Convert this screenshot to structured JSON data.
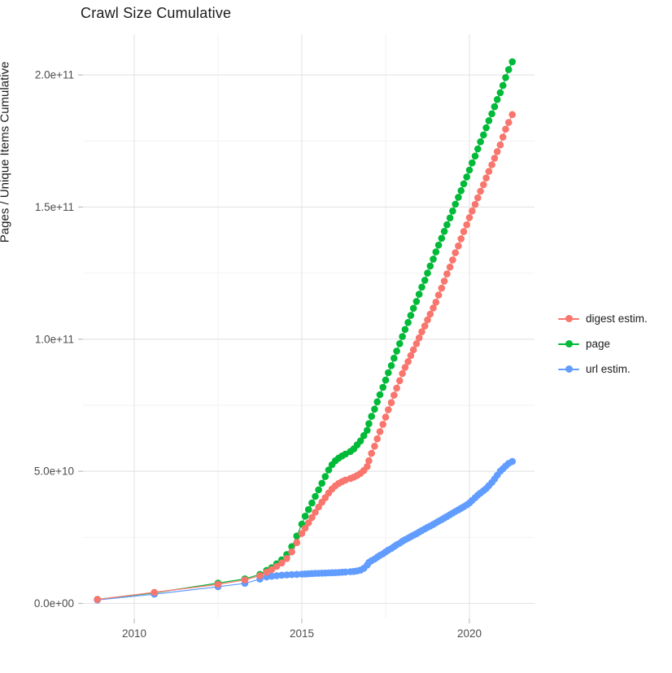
{
  "chart_data": {
    "type": "scatter",
    "title": "Crawl Size Cumulative",
    "xlabel": "",
    "ylabel": "Pages / Unique Items Cumulative",
    "x_unit": "year (decimal, crawl date)",
    "y_unit": "count, values stored in billions (1e9 items)",
    "xlim": [
      2008.35,
      2021.95
    ],
    "ylim_e9": [
      0,
      213
    ],
    "grid": true,
    "legend_position": "right",
    "x_ticks": [
      {
        "value": 2010,
        "label": "2010"
      },
      {
        "value": 2015,
        "label": "2015"
      },
      {
        "value": 2020,
        "label": "2020"
      }
    ],
    "x_minor_ticks": [
      2012.5,
      2017.5
    ],
    "y_ticks": [
      {
        "value_e9": 0,
        "label": "0.0e+00"
      },
      {
        "value_e9": 50,
        "label": "5.0e+10"
      },
      {
        "value_e9": 100,
        "label": "1.0e+11"
      },
      {
        "value_e9": 150,
        "label": "1.5e+11"
      },
      {
        "value_e9": 200,
        "label": "2.0e+11"
      }
    ],
    "y_minor_ticks_e9": [
      25,
      75,
      125,
      175
    ],
    "series": [
      {
        "name": "digest estim.",
        "color": "#F8766D",
        "z": 3,
        "points": [
          [
            2008.9,
            1.5
          ],
          [
            2010.6,
            4.2
          ],
          [
            2012.5,
            7.2
          ],
          [
            2013.3,
            8.9
          ],
          [
            2013.75,
            10.5
          ],
          [
            2013.95,
            11.8
          ],
          [
            2014.1,
            12.8
          ],
          [
            2014.25,
            14
          ],
          [
            2014.4,
            15.3
          ],
          [
            2014.55,
            17
          ],
          [
            2014.7,
            19.5
          ],
          [
            2014.85,
            23
          ],
          [
            2015,
            26.5
          ],
          [
            2015.1,
            28.5
          ],
          [
            2015.2,
            30.5
          ],
          [
            2015.3,
            32.5
          ],
          [
            2015.4,
            34.5
          ],
          [
            2015.5,
            36.5
          ],
          [
            2015.6,
            38.3
          ],
          [
            2015.7,
            40
          ],
          [
            2015.8,
            41.8
          ],
          [
            2015.9,
            43.3
          ],
          [
            2016,
            44.5
          ],
          [
            2016.1,
            45.4
          ],
          [
            2016.2,
            46.1
          ],
          [
            2016.3,
            46.7
          ],
          [
            2016.45,
            47.3
          ],
          [
            2016.55,
            47.8
          ],
          [
            2016.65,
            48.4
          ],
          [
            2016.75,
            49.2
          ],
          [
            2016.85,
            50.3
          ],
          [
            2016.95,
            51.8
          ],
          [
            2017,
            54
          ],
          [
            2017.08,
            56.8
          ],
          [
            2017.17,
            59.5
          ],
          [
            2017.25,
            62.3
          ],
          [
            2017.33,
            65
          ],
          [
            2017.42,
            67.8
          ],
          [
            2017.5,
            70.5
          ],
          [
            2017.58,
            73.3
          ],
          [
            2017.67,
            76
          ],
          [
            2017.75,
            78.8
          ],
          [
            2017.83,
            81.5
          ],
          [
            2017.92,
            84.3
          ],
          [
            2018,
            87
          ],
          [
            2018.08,
            89.3
          ],
          [
            2018.17,
            91.5
          ],
          [
            2018.25,
            93.8
          ],
          [
            2018.33,
            96
          ],
          [
            2018.42,
            98.3
          ],
          [
            2018.5,
            100.5
          ],
          [
            2018.58,
            102.8
          ],
          [
            2018.67,
            105
          ],
          [
            2018.75,
            107.3
          ],
          [
            2018.83,
            109.5
          ],
          [
            2018.92,
            111.8
          ],
          [
            2019,
            114
          ],
          [
            2019.08,
            116.7
          ],
          [
            2019.17,
            119.3
          ],
          [
            2019.25,
            122
          ],
          [
            2019.33,
            124.7
          ],
          [
            2019.42,
            127.3
          ],
          [
            2019.5,
            130
          ],
          [
            2019.58,
            132.7
          ],
          [
            2019.67,
            135.3
          ],
          [
            2019.75,
            138
          ],
          [
            2019.83,
            140.7
          ],
          [
            2019.92,
            143.3
          ],
          [
            2020,
            146
          ],
          [
            2020.08,
            148.5
          ],
          [
            2020.17,
            151
          ],
          [
            2020.25,
            153.5
          ],
          [
            2020.33,
            156
          ],
          [
            2020.42,
            158.5
          ],
          [
            2020.5,
            161
          ],
          [
            2020.58,
            163.5
          ],
          [
            2020.67,
            166
          ],
          [
            2020.75,
            168.5
          ],
          [
            2020.83,
            171
          ],
          [
            2020.92,
            173.5
          ],
          [
            2021,
            176.5
          ],
          [
            2021.08,
            179.5
          ],
          [
            2021.17,
            182
          ],
          [
            2021.28,
            185
          ]
        ]
      },
      {
        "name": "page",
        "color": "#00BA38",
        "z": 1,
        "points": [
          [
            2008.9,
            1.5
          ],
          [
            2010.6,
            4
          ],
          [
            2012.5,
            7.7
          ],
          [
            2013.3,
            9.3
          ],
          [
            2013.75,
            11
          ],
          [
            2013.95,
            12.5
          ],
          [
            2014.1,
            13.5
          ],
          [
            2014.25,
            15
          ],
          [
            2014.4,
            16.5
          ],
          [
            2014.55,
            18.5
          ],
          [
            2014.7,
            21.5
          ],
          [
            2014.85,
            25.5
          ],
          [
            2015,
            30
          ],
          [
            2015.1,
            33
          ],
          [
            2015.2,
            35.5
          ],
          [
            2015.3,
            38
          ],
          [
            2015.4,
            40.5
          ],
          [
            2015.5,
            43
          ],
          [
            2015.6,
            45.5
          ],
          [
            2015.7,
            48
          ],
          [
            2015.8,
            50.5
          ],
          [
            2015.9,
            52.5
          ],
          [
            2016,
            54
          ],
          [
            2016.1,
            55
          ],
          [
            2016.2,
            55.8
          ],
          [
            2016.3,
            56.5
          ],
          [
            2016.45,
            57.5
          ],
          [
            2016.55,
            58.5
          ],
          [
            2016.65,
            60
          ],
          [
            2016.75,
            61.5
          ],
          [
            2016.85,
            63.5
          ],
          [
            2016.95,
            65.5
          ],
          [
            2017,
            68
          ],
          [
            2017.08,
            70.8
          ],
          [
            2017.17,
            73.5
          ],
          [
            2017.25,
            76.3
          ],
          [
            2017.33,
            79
          ],
          [
            2017.42,
            81.8
          ],
          [
            2017.5,
            84.5
          ],
          [
            2017.58,
            87.3
          ],
          [
            2017.67,
            90
          ],
          [
            2017.75,
            92.8
          ],
          [
            2017.83,
            95.5
          ],
          [
            2017.92,
            98.3
          ],
          [
            2018,
            101
          ],
          [
            2018.08,
            103.7
          ],
          [
            2018.17,
            106.3
          ],
          [
            2018.25,
            109
          ],
          [
            2018.33,
            111.7
          ],
          [
            2018.42,
            114.3
          ],
          [
            2018.5,
            117
          ],
          [
            2018.58,
            119.7
          ],
          [
            2018.67,
            122.3
          ],
          [
            2018.75,
            125
          ],
          [
            2018.83,
            127.7
          ],
          [
            2018.92,
            130.3
          ],
          [
            2019,
            133
          ],
          [
            2019.08,
            135.6
          ],
          [
            2019.17,
            138.2
          ],
          [
            2019.25,
            140.8
          ],
          [
            2019.33,
            143.3
          ],
          [
            2019.42,
            145.9
          ],
          [
            2019.5,
            148.5
          ],
          [
            2019.58,
            151.1
          ],
          [
            2019.67,
            153.7
          ],
          [
            2019.75,
            156.2
          ],
          [
            2019.83,
            158.8
          ],
          [
            2019.92,
            161.4
          ],
          [
            2020,
            164
          ],
          [
            2020.08,
            166.7
          ],
          [
            2020.17,
            169.3
          ],
          [
            2020.25,
            172
          ],
          [
            2020.33,
            174.7
          ],
          [
            2020.42,
            177.3
          ],
          [
            2020.5,
            180
          ],
          [
            2020.58,
            182.7
          ],
          [
            2020.67,
            185.3
          ],
          [
            2020.75,
            188
          ],
          [
            2020.83,
            190.7
          ],
          [
            2020.92,
            193.3
          ],
          [
            2021,
            196
          ],
          [
            2021.08,
            199
          ],
          [
            2021.17,
            202
          ],
          [
            2021.28,
            205
          ]
        ]
      },
      {
        "name": "url estim.",
        "color": "#619CFF",
        "z": 2,
        "points": [
          [
            2008.9,
            1.3
          ],
          [
            2010.6,
            3.5
          ],
          [
            2012.5,
            6.3
          ],
          [
            2013.3,
            7.6
          ],
          [
            2013.75,
            9.2
          ],
          [
            2013.95,
            10
          ],
          [
            2014.1,
            10.3
          ],
          [
            2014.25,
            10.5
          ],
          [
            2014.4,
            10.7
          ],
          [
            2014.55,
            10.8
          ],
          [
            2014.7,
            10.9
          ],
          [
            2014.85,
            11
          ],
          [
            2015,
            11.1
          ],
          [
            2015.1,
            11.15
          ],
          [
            2015.2,
            11.2
          ],
          [
            2015.3,
            11.3
          ],
          [
            2015.4,
            11.35
          ],
          [
            2015.5,
            11.4
          ],
          [
            2015.6,
            11.45
          ],
          [
            2015.7,
            11.5
          ],
          [
            2015.8,
            11.55
          ],
          [
            2015.9,
            11.6
          ],
          [
            2016,
            11.65
          ],
          [
            2016.1,
            11.7
          ],
          [
            2016.2,
            11.8
          ],
          [
            2016.3,
            11.9
          ],
          [
            2016.45,
            12
          ],
          [
            2016.55,
            12.1
          ],
          [
            2016.65,
            12.3
          ],
          [
            2016.75,
            12.6
          ],
          [
            2016.85,
            13.3
          ],
          [
            2016.95,
            14.5
          ],
          [
            2017,
            15.5
          ],
          [
            2017.08,
            16.2
          ],
          [
            2017.17,
            16.8
          ],
          [
            2017.25,
            17.5
          ],
          [
            2017.33,
            18.2
          ],
          [
            2017.42,
            18.8
          ],
          [
            2017.5,
            19.5
          ],
          [
            2017.58,
            20.2
          ],
          [
            2017.67,
            20.8
          ],
          [
            2017.75,
            21.5
          ],
          [
            2017.83,
            22.2
          ],
          [
            2017.92,
            22.8
          ],
          [
            2018,
            23.5
          ],
          [
            2018.08,
            24.1
          ],
          [
            2018.17,
            24.7
          ],
          [
            2018.25,
            25.3
          ],
          [
            2018.33,
            25.8
          ],
          [
            2018.42,
            26.4
          ],
          [
            2018.5,
            27
          ],
          [
            2018.58,
            27.6
          ],
          [
            2018.67,
            28.2
          ],
          [
            2018.75,
            28.8
          ],
          [
            2018.83,
            29.3
          ],
          [
            2018.92,
            29.9
          ],
          [
            2019,
            30.5
          ],
          [
            2019.08,
            31.1
          ],
          [
            2019.17,
            31.7
          ],
          [
            2019.25,
            32.3
          ],
          [
            2019.33,
            32.9
          ],
          [
            2019.42,
            33.6
          ],
          [
            2019.5,
            34.2
          ],
          [
            2019.58,
            34.8
          ],
          [
            2019.67,
            35.4
          ],
          [
            2019.75,
            36
          ],
          [
            2019.83,
            36.6
          ],
          [
            2019.92,
            37.3
          ],
          [
            2020,
            38
          ],
          [
            2020.08,
            39
          ],
          [
            2020.17,
            40
          ],
          [
            2020.25,
            41
          ],
          [
            2020.33,
            41.8
          ],
          [
            2020.42,
            42.7
          ],
          [
            2020.5,
            43.5
          ],
          [
            2020.58,
            44.6
          ],
          [
            2020.67,
            45.8
          ],
          [
            2020.75,
            47.1
          ],
          [
            2020.83,
            48.5
          ],
          [
            2020.92,
            50
          ],
          [
            2021,
            51
          ],
          [
            2021.08,
            52
          ],
          [
            2021.17,
            53
          ],
          [
            2021.28,
            53.7
          ]
        ]
      }
    ],
    "style_colors": {
      "major_grid": "#e3e3e3",
      "minor_grid": "#f2f2f2",
      "tick_mark": "#bdbdbd",
      "tick_label": "#4d4d4d",
      "text": "#1c1c1c",
      "background": "#ffffff"
    }
  }
}
